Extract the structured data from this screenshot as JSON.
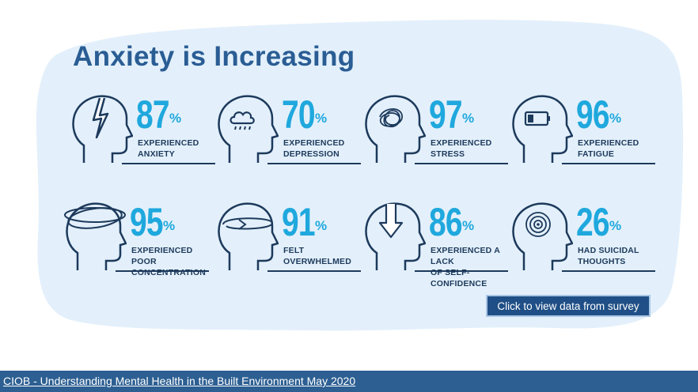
{
  "title": "Anxiety is Increasing",
  "stats": [
    {
      "value": "87",
      "unit": "%",
      "label": "EXPERIENCED\nANXIETY",
      "icon": "head-lightning-icon"
    },
    {
      "value": "70",
      "unit": "%",
      "label": "EXPERIENCED\nDEPRESSION",
      "icon": "head-raincloud-icon"
    },
    {
      "value": "97",
      "unit": "%",
      "label": "EXPERIENCED\nSTRESS",
      "icon": "head-scribble-icon"
    },
    {
      "value": "96",
      "unit": "%",
      "label": "EXPERIENCED\nFATIGUE",
      "icon": "head-low-battery-icon"
    },
    {
      "value": "95",
      "unit": "%",
      "label": "EXPERIENCED POOR\nCONCENTRATION",
      "icon": "head-orbit-rings-icon"
    },
    {
      "value": "91",
      "unit": "%",
      "label": "FELT\nOVERWHELMED",
      "icon": "head-circular-arrow-icon"
    },
    {
      "value": "86",
      "unit": "%",
      "label": "EXPERIENCED A LACK\nOF SELF-CONFIDENCE",
      "icon": "head-down-arrow-icon"
    },
    {
      "value": "26",
      "unit": "%",
      "label": "HAD SUICIDAL\nTHOUGHTS",
      "icon": "head-target-icon"
    }
  ],
  "cta_label": "Click to view data from survey",
  "footer_link": "CIOB - Understanding Mental Health in the Built Environment May 2020",
  "colors": {
    "title": "#2a5d94",
    "percent": "#1fa8dd",
    "label": "#1d3a5c",
    "blob": "#e3f0fb",
    "footer": "#2d5f92"
  }
}
